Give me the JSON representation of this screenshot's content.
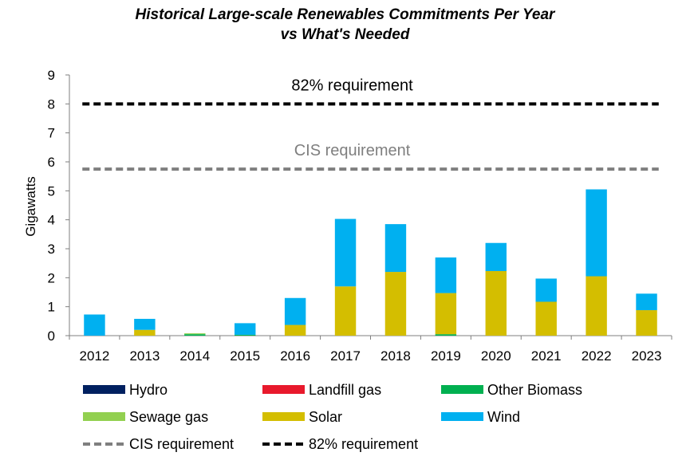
{
  "chart_data": {
    "type": "bar",
    "stacked": true,
    "title_line1": "Historical Large-scale Renewables Commitments Per Year",
    "title_line2": "vs What's Needed",
    "xlabel": "",
    "ylabel": "Gigawatts",
    "ylim": [
      0,
      9
    ],
    "yticks": [
      "0",
      "1",
      "2",
      "3",
      "4",
      "5",
      "6",
      "7",
      "8",
      "9"
    ],
    "categories": [
      "2012",
      "2013",
      "2014",
      "2015",
      "2016",
      "2017",
      "2018",
      "2019",
      "2020",
      "2021",
      "2022",
      "2023"
    ],
    "series": [
      {
        "name": "Hydro",
        "color": "#002060",
        "values": [
          0,
          0,
          0,
          0,
          0,
          0,
          0,
          0,
          0,
          0,
          0,
          0
        ]
      },
      {
        "name": "Landfill gas",
        "color": "#e8192c",
        "values": [
          0,
          0,
          0,
          0,
          0,
          0,
          0,
          0,
          0,
          0,
          0,
          0
        ]
      },
      {
        "name": "Other Biomass",
        "color": "#00b050",
        "values": [
          0,
          0,
          0.05,
          0.03,
          0,
          0,
          0,
          0.05,
          0,
          0,
          0,
          0
        ]
      },
      {
        "name": "Sewage gas",
        "color": "#92d050",
        "values": [
          0,
          0,
          0.03,
          0,
          0,
          0,
          0,
          0,
          0,
          0,
          0,
          0
        ]
      },
      {
        "name": "Solar",
        "color": "#d4be00",
        "values": [
          0,
          0.2,
          0,
          0,
          0.37,
          1.7,
          2.2,
          1.42,
          2.23,
          1.17,
          2.05,
          0.88
        ]
      },
      {
        "name": "Wind",
        "color": "#00b0f0",
        "values": [
          0.73,
          0.38,
          0,
          0.4,
          0.93,
          2.33,
          1.65,
          1.23,
          0.97,
          0.8,
          3.0,
          0.57
        ]
      }
    ],
    "reference_lines": [
      {
        "name": "CIS requirement",
        "value": 5.75,
        "color": "#7f7f7f",
        "label": "CIS requirement"
      },
      {
        "name": "82% requirement",
        "value": 8.0,
        "color": "#000000",
        "label": "82% requirement"
      }
    ],
    "legend_position": "bottom",
    "grid": false
  }
}
